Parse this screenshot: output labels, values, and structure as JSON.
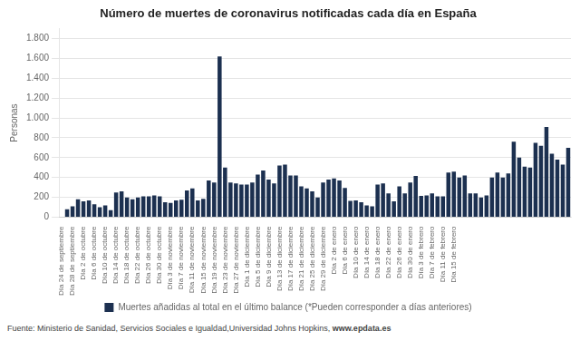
{
  "chart_data": {
    "type": "bar",
    "title": "Número de muertes de coronavirus notificadas cada día en España",
    "ylabel": "Personas",
    "annotations": [
      "Fuente: Ministerio de Sanidad, Servicios Sociales e Igualdad,Universidad Johns Hopkins, ",
      "www.epdata.es"
    ],
    "categories": [
      "Día\n24 de\nseptiembre",
      null,
      "Día\n28 de\nseptiembre",
      null,
      "Día\n2 de\noctubre",
      null,
      "Día\n6 de\noctubre",
      null,
      "Día\n10 de\noctubre",
      null,
      "Día\n14 de\noctubre",
      null,
      "Día\n18 de\noctubre",
      null,
      "Día\n22 de\noctubre",
      null,
      "Día\n26 de\noctubre",
      null,
      "Día\n30 de\noctubre",
      null,
      "Día\n3 de\nnoviembre",
      null,
      "Día\n7 de\nnoviembre",
      null,
      "Día\n11 de\nnoviembre",
      null,
      "Día\n15 de\nnoviembre",
      null,
      "Día\n19 de\nnoviembre",
      null,
      "Día\n23 de\nnoviembre",
      null,
      "Día\n27 de\nnoviembre",
      null,
      "Día\n1 de\ndiciembre",
      null,
      "Día\n5 de\ndiciembre",
      null,
      "Día\n9 de\ndiciembre",
      null,
      "Día\n13 de\ndiciembre",
      null,
      "Día\n17 de\ndiciembre",
      null,
      "Día\n21 de\ndiciembre",
      null,
      "Día\n25 de\ndiciembre",
      null,
      "Día\n29 de\ndiciembre",
      null,
      "Día\n2 de\nenero",
      null,
      "Día\n6 de\nenero",
      null,
      "Día\n10 de\nenero",
      null,
      "Día\n14 de\nenero",
      null,
      "Día\n18 de\nenero",
      null,
      "Día\n22 de\nenero",
      null,
      "Día\n26 de\nenero",
      null,
      "Día\n30 de\nenero",
      null,
      "Día\n3 de\nfebrero",
      null,
      "Día\n7 de\nfebrero",
      null,
      "Día\n11 de\nfebrero",
      null,
      "Día\n15 de\nfebrero",
      null,
      null,
      null,
      null,
      null,
      null,
      null,
      null,
      null,
      null,
      null,
      null,
      null,
      null,
      null,
      null,
      null,
      null,
      null,
      null,
      null
    ],
    "series": [
      {
        "name": "Muertes añadidas al total en el último balance (*Pueden corresponder a días anteriores)",
        "color": "#1c3050",
        "values": [
          5,
          80,
          110,
          180,
          160,
          170,
          130,
          100,
          120,
          70,
          250,
          260,
          200,
          180,
          200,
          210,
          210,
          220,
          210,
          150,
          145,
          170,
          175,
          270,
          290,
          170,
          185,
          370,
          350,
          1620,
          500,
          350,
          340,
          330,
          330,
          350,
          430,
          470,
          380,
          340,
          520,
          530,
          420,
          420,
          310,
          290,
          260,
          200,
          350,
          380,
          390,
          370,
          295,
          165,
          170,
          150,
          120,
          110,
          330,
          340,
          240,
          160,
          310,
          240,
          350,
          415,
          215,
          220,
          240,
          210,
          210,
          450,
          460,
          400,
          420,
          240,
          240,
          200,
          220,
          400,
          450,
          400,
          440,
          760,
          600,
          510,
          500,
          750,
          720,
          910,
          640,
          580,
          530,
          700
        ]
      }
    ],
    "ylim": [
      0,
      1900
    ],
    "yticks": [
      0,
      200,
      400,
      600,
      800,
      {
        "value": 1000,
        "label": "1.000"
      },
      {
        "value": 1200,
        "label": "1.200"
      },
      {
        "value": 1400,
        "label": "1.400"
      },
      {
        "value": 1600,
        "label": "1.600"
      },
      {
        "value": 1800,
        "label": "1.800"
      }
    ],
    "grid": true,
    "legend": "bottom"
  }
}
